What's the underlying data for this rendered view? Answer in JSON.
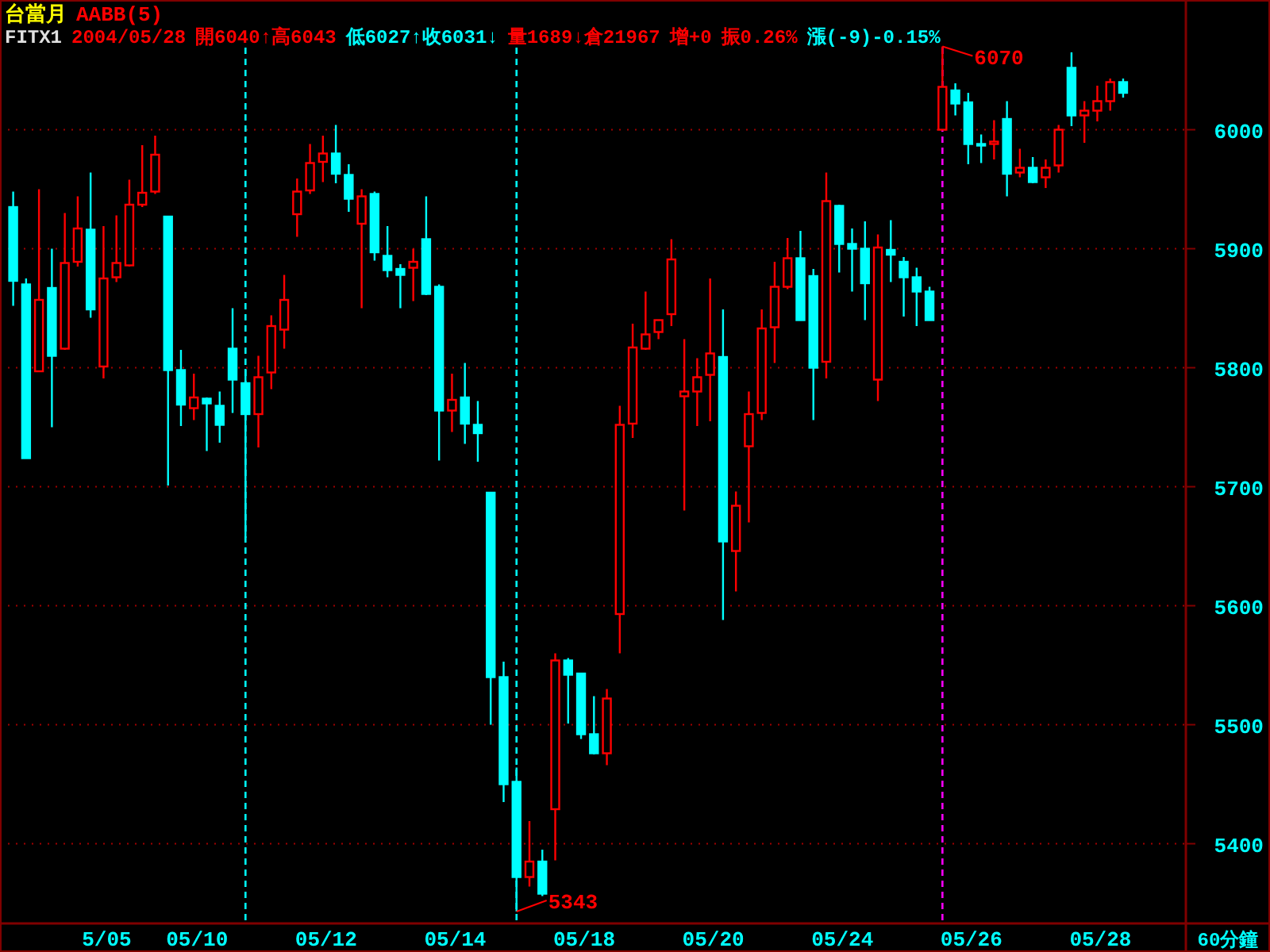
{
  "chart_data": {
    "type": "candlestick",
    "title": "台當月",
    "subtitle": "AABB(5)",
    "xlabel": "60分鐘",
    "categories": [
      null,
      null,
      null,
      null,
      null,
      null,
      null,
      "5/05",
      null,
      null,
      null,
      null,
      null,
      null,
      "05/10",
      null,
      null,
      null,
      null,
      null,
      null,
      null,
      null,
      null,
      "05/12",
      null,
      null,
      null,
      null,
      null,
      null,
      null,
      null,
      null,
      "05/14",
      null,
      null,
      null,
      null,
      null,
      null,
      null,
      null,
      null,
      "05/18",
      null,
      null,
      null,
      null,
      null,
      null,
      null,
      null,
      null,
      "05/20",
      null,
      null,
      null,
      null,
      null,
      null,
      null,
      null,
      null,
      "05/24",
      null,
      null,
      null,
      null,
      null,
      null,
      null,
      null,
      null,
      "05/26",
      null,
      null,
      null,
      null,
      null,
      null,
      null,
      null,
      null,
      "05/28",
      null,
      null
    ],
    "ohlc": [
      [
        5935,
        5948,
        5852,
        5873
      ],
      [
        5870,
        5875,
        5724,
        5724
      ],
      [
        5797,
        5950,
        5797,
        5857
      ],
      [
        5867,
        5900,
        5750,
        5810
      ],
      [
        5816,
        5930,
        5815,
        5888
      ],
      [
        5889,
        5944,
        5885,
        5917
      ],
      [
        5916,
        5964,
        5842,
        5849
      ],
      [
        5801,
        5919,
        5791,
        5875
      ],
      [
        5876,
        5928,
        5872,
        5888
      ],
      [
        5886,
        5958,
        5885,
        5937
      ],
      [
        5937,
        5987,
        5935,
        5947
      ],
      [
        5948,
        5995,
        5946,
        5979
      ],
      [
        5927,
        5927,
        5701,
        5798
      ],
      [
        5798,
        5815,
        5751,
        5769
      ],
      [
        5766,
        5795,
        5756,
        5775
      ],
      [
        5774,
        5775,
        5730,
        5770
      ],
      [
        5768,
        5780,
        5737,
        5752
      ],
      [
        5816,
        5850,
        5762,
        5790
      ],
      [
        5787,
        5799,
        5657,
        5761
      ],
      [
        5761,
        5810,
        5733,
        5792
      ],
      [
        5796,
        5844,
        5782,
        5835
      ],
      [
        5832,
        5878,
        5816,
        5857
      ],
      [
        5929,
        5959,
        5910,
        5948
      ],
      [
        5949,
        5988,
        5946,
        5972
      ],
      [
        5973,
        5995,
        5956,
        5980
      ],
      [
        5980,
        6004,
        5955,
        5963
      ],
      [
        5962,
        5971,
        5931,
        5942
      ],
      [
        5921,
        5950,
        5850,
        5944
      ],
      [
        5946,
        5948,
        5890,
        5897
      ],
      [
        5894,
        5919,
        5876,
        5882
      ],
      [
        5883,
        5887,
        5850,
        5878
      ],
      [
        5884,
        5900,
        5856,
        5889
      ],
      [
        5908,
        5944,
        5861,
        5862
      ],
      [
        5868,
        5870,
        5722,
        5764
      ],
      [
        5764,
        5795,
        5746,
        5773
      ],
      [
        5775,
        5804,
        5736,
        5753
      ],
      [
        5752,
        5772,
        5721,
        5745
      ],
      [
        5695,
        5695,
        5500,
        5540
      ],
      [
        5540,
        5553,
        5435,
        5450
      ],
      [
        5452,
        5464,
        5343,
        5372
      ],
      [
        5372,
        5419,
        5364,
        5385
      ],
      [
        5385,
        5395,
        5356,
        5358
      ],
      [
        5429,
        5560,
        5386,
        5554
      ],
      [
        5554,
        5556,
        5501,
        5542
      ],
      [
        5543,
        5543,
        5488,
        5492
      ],
      [
        5492,
        5524,
        5475,
        5476
      ],
      [
        5476,
        5530,
        5466,
        5522
      ],
      [
        5593,
        5768,
        5560,
        5752
      ],
      [
        5753,
        5837,
        5741,
        5817
      ],
      [
        5816,
        5864,
        5815,
        5828
      ],
      [
        5830,
        5840,
        5824,
        5840
      ],
      [
        5845,
        5908,
        5835,
        5891
      ],
      [
        5776,
        5824,
        5680,
        5780
      ],
      [
        5780,
        5808,
        5751,
        5792
      ],
      [
        5794,
        5875,
        5755,
        5812
      ],
      [
        5809,
        5849,
        5588,
        5654
      ],
      [
        5646,
        5696,
        5612,
        5684
      ],
      [
        5734,
        5780,
        5670,
        5761
      ],
      [
        5762,
        5849,
        5756,
        5833
      ],
      [
        5834,
        5889,
        5804,
        5868
      ],
      [
        5868,
        5909,
        5866,
        5892
      ],
      [
        5892,
        5915,
        5840,
        5840
      ],
      [
        5877,
        5883,
        5756,
        5800
      ],
      [
        5805,
        5964,
        5791,
        5940
      ],
      [
        5936,
        5937,
        5880,
        5904
      ],
      [
        5904,
        5917,
        5864,
        5900
      ],
      [
        5900,
        5923,
        5840,
        5871
      ],
      [
        5790,
        5912,
        5772,
        5901
      ],
      [
        5899,
        5924,
        5872,
        5895
      ],
      [
        5889,
        5893,
        5843,
        5876
      ],
      [
        5876,
        5884,
        5835,
        5864
      ],
      [
        5864,
        5868,
        5840,
        5840
      ],
      [
        6000,
        6070,
        6000,
        6036
      ],
      [
        6033,
        6039,
        6012,
        6022
      ],
      [
        6023,
        6031,
        5971,
        5988
      ],
      [
        5988,
        5996,
        5972,
        5987
      ],
      [
        5988,
        6008,
        5975,
        5990
      ],
      [
        6009,
        6024,
        5944,
        5963
      ],
      [
        5964,
        5984,
        5960,
        5968
      ],
      [
        5968,
        5977,
        5955,
        5956
      ],
      [
        5960,
        5975,
        5951,
        5968
      ],
      [
        5970,
        6004,
        5964,
        6000
      ],
      [
        6052,
        6065,
        6003,
        6012
      ],
      [
        6012,
        6024,
        5989,
        6016
      ],
      [
        6016,
        6037,
        6007,
        6024
      ],
      [
        6024,
        6043,
        6016,
        6040
      ],
      [
        6040,
        6043,
        6027,
        6031
      ]
    ],
    "colors": [
      "#00ffff",
      "#00ffff",
      "#ff0000",
      "#00ffff",
      "#ff0000",
      "#ff0000",
      "#00ffff",
      "#ff0000",
      "#ff0000",
      "#ff0000",
      "#ff0000",
      "#ff0000",
      "#00ffff",
      "#00ffff",
      "#ff0000",
      "#00ffff",
      "#00ffff",
      "#00ffff",
      "#00ffff",
      "#ff0000",
      "#ff0000",
      "#ff0000",
      "#ff0000",
      "#ff0000",
      "#ff0000",
      "#00ffff",
      "#00ffff",
      "#ff0000",
      "#00ffff",
      "#00ffff",
      "#00ffff",
      "#ff0000",
      "#00ffff",
      "#00ffff",
      "#ff0000",
      "#00ffff",
      "#00ffff",
      "#00ffff",
      "#00ffff",
      "#00ffff",
      "#ff0000",
      "#00ffff",
      "#ff0000",
      "#00ffff",
      "#00ffff",
      "#00ffff",
      "#ff0000",
      "#ff0000",
      "#ff0000",
      "#ff0000",
      "#ff0000",
      "#ff0000",
      "#ff0000",
      "#ff0000",
      "#ff0000",
      "#00ffff",
      "#ff0000",
      "#ff0000",
      "#ff0000",
      "#ff0000",
      "#ff0000",
      "#00ffff",
      "#00ffff",
      "#ff0000",
      "#00ffff",
      "#00ffff",
      "#00ffff",
      "#ff0000",
      "#00ffff",
      "#00ffff",
      "#00ffff",
      "#00ffff",
      "#ff0000",
      "#00ffff",
      "#00ffff",
      "#00ffff",
      "#ff0000",
      "#00ffff",
      "#ff0000",
      "#00ffff",
      "#ff0000",
      "#ff0000",
      "#00ffff",
      "#ff0000",
      "#ff0000",
      "#ff0000",
      "#00ffff"
    ],
    "ylim": [
      5333,
      6109
    ],
    "yticks": [
      5400,
      5500,
      5600,
      5700,
      5800,
      5900,
      6000
    ],
    "grid": "y",
    "annotations": [
      "FITX1",
      "2004/05/28",
      "開6040↑高6043",
      "低6027↑收6031↓",
      "量1689↓倉21967",
      "增+0",
      "振0.26%",
      "漲(-9)-0.15%",
      "6070",
      "5343"
    ]
  }
}
